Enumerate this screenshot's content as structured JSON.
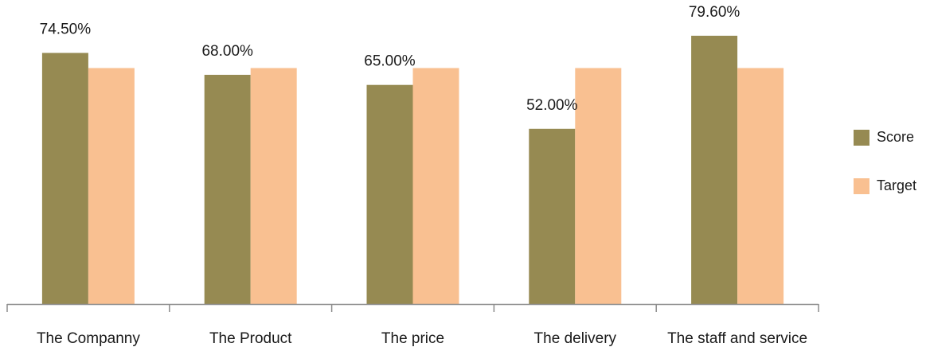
{
  "chart_data": {
    "type": "bar",
    "categories": [
      "The Companny",
      "The Product",
      "The price",
      "The delivery",
      "The staff and service"
    ],
    "series": [
      {
        "name": "Score",
        "values": [
          74.5,
          68.0,
          65.0,
          52.0,
          79.6
        ],
        "labels": [
          "74.50%",
          "68.00%",
          "65.00%",
          "52.00%",
          "79.60%"
        ],
        "color": "#968a52"
      },
      {
        "name": "Target",
        "values": [
          70,
          70,
          70,
          70,
          70
        ],
        "color": "#f9c091"
      }
    ],
    "ylim": [
      0,
      85
    ],
    "grid": false,
    "legend": "right"
  }
}
